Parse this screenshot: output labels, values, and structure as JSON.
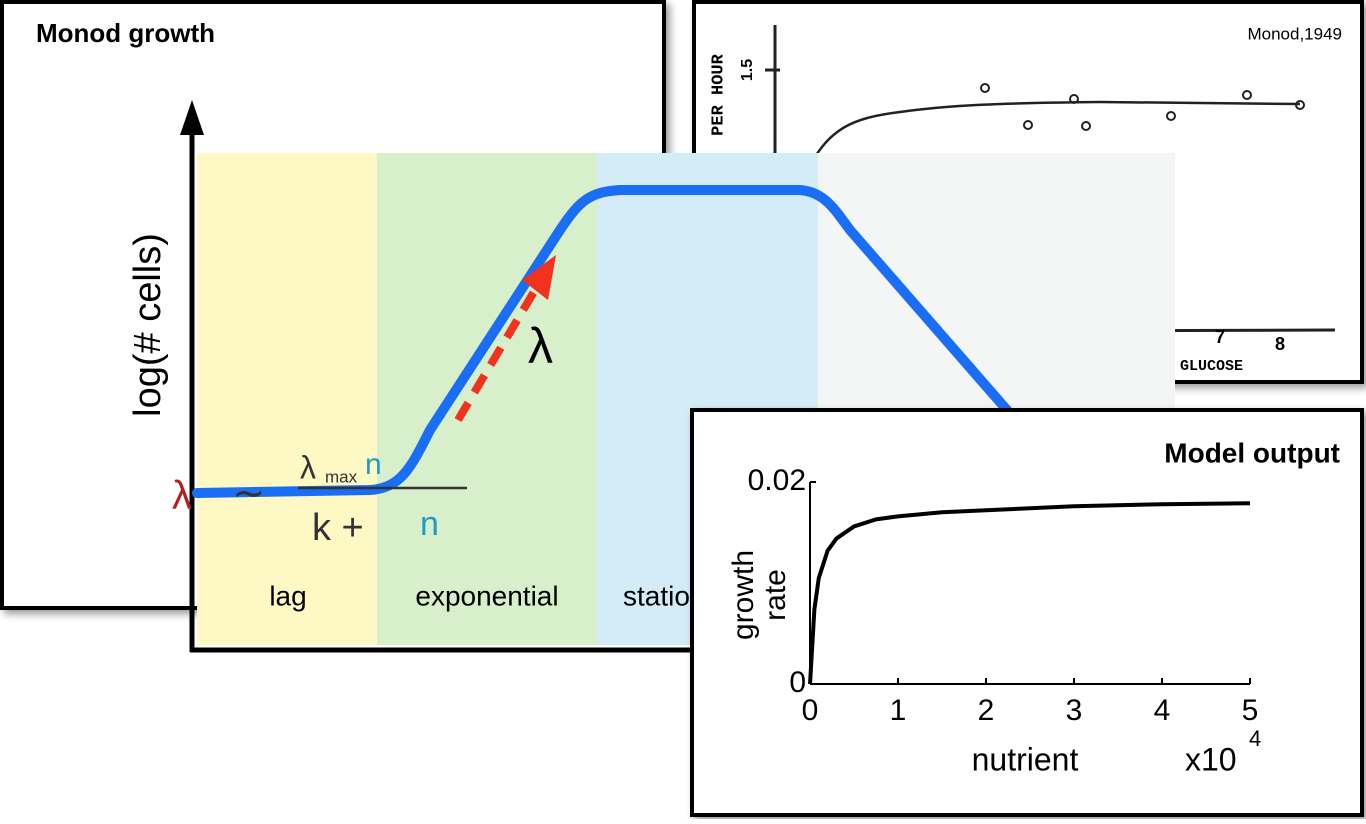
{
  "monod_panel": {
    "title": "Monod growth"
  },
  "scan_panel": {
    "citation": "Monod,1949",
    "y_axis_text": "PER HOUR",
    "y_tick": "1.5",
    "x_ticks": [
      "7",
      "8"
    ],
    "x_axis_text": "GLUCOSE"
  },
  "growth_curve": {
    "y_label": "log(# cells)",
    "phases": [
      "lag",
      "exponential",
      "stationary"
    ],
    "rate_symbol": "λ"
  },
  "formula": {
    "lhs": "λ",
    "relation": "∼",
    "numerator": "λ",
    "numerator_sub": "max",
    "numerator_var": "n",
    "denominator": "k + ",
    "denominator_var": "n"
  },
  "chart_data": {
    "type": "line",
    "title": "Model output",
    "x_label": "nutrient",
    "y_label": [
      "growth",
      "rate"
    ],
    "x_multiplier": {
      "base": "x10",
      "exponent": "4"
    },
    "x": [
      0,
      0.05,
      0.1,
      0.2,
      0.3,
      0.5,
      0.75,
      1,
      1.5,
      2,
      3,
      4,
      5
    ],
    "values": [
      0,
      0.0074,
      0.0105,
      0.0132,
      0.0144,
      0.0156,
      0.0163,
      0.0166,
      0.017,
      0.0172,
      0.0176,
      0.0178,
      0.0179
    ],
    "color": "#000000",
    "xlim": [
      0,
      5
    ],
    "xticks": [
      0,
      1,
      2,
      3,
      4,
      5
    ],
    "ylim": [
      0,
      0.02
    ],
    "yticks": [
      0,
      0.02
    ]
  }
}
